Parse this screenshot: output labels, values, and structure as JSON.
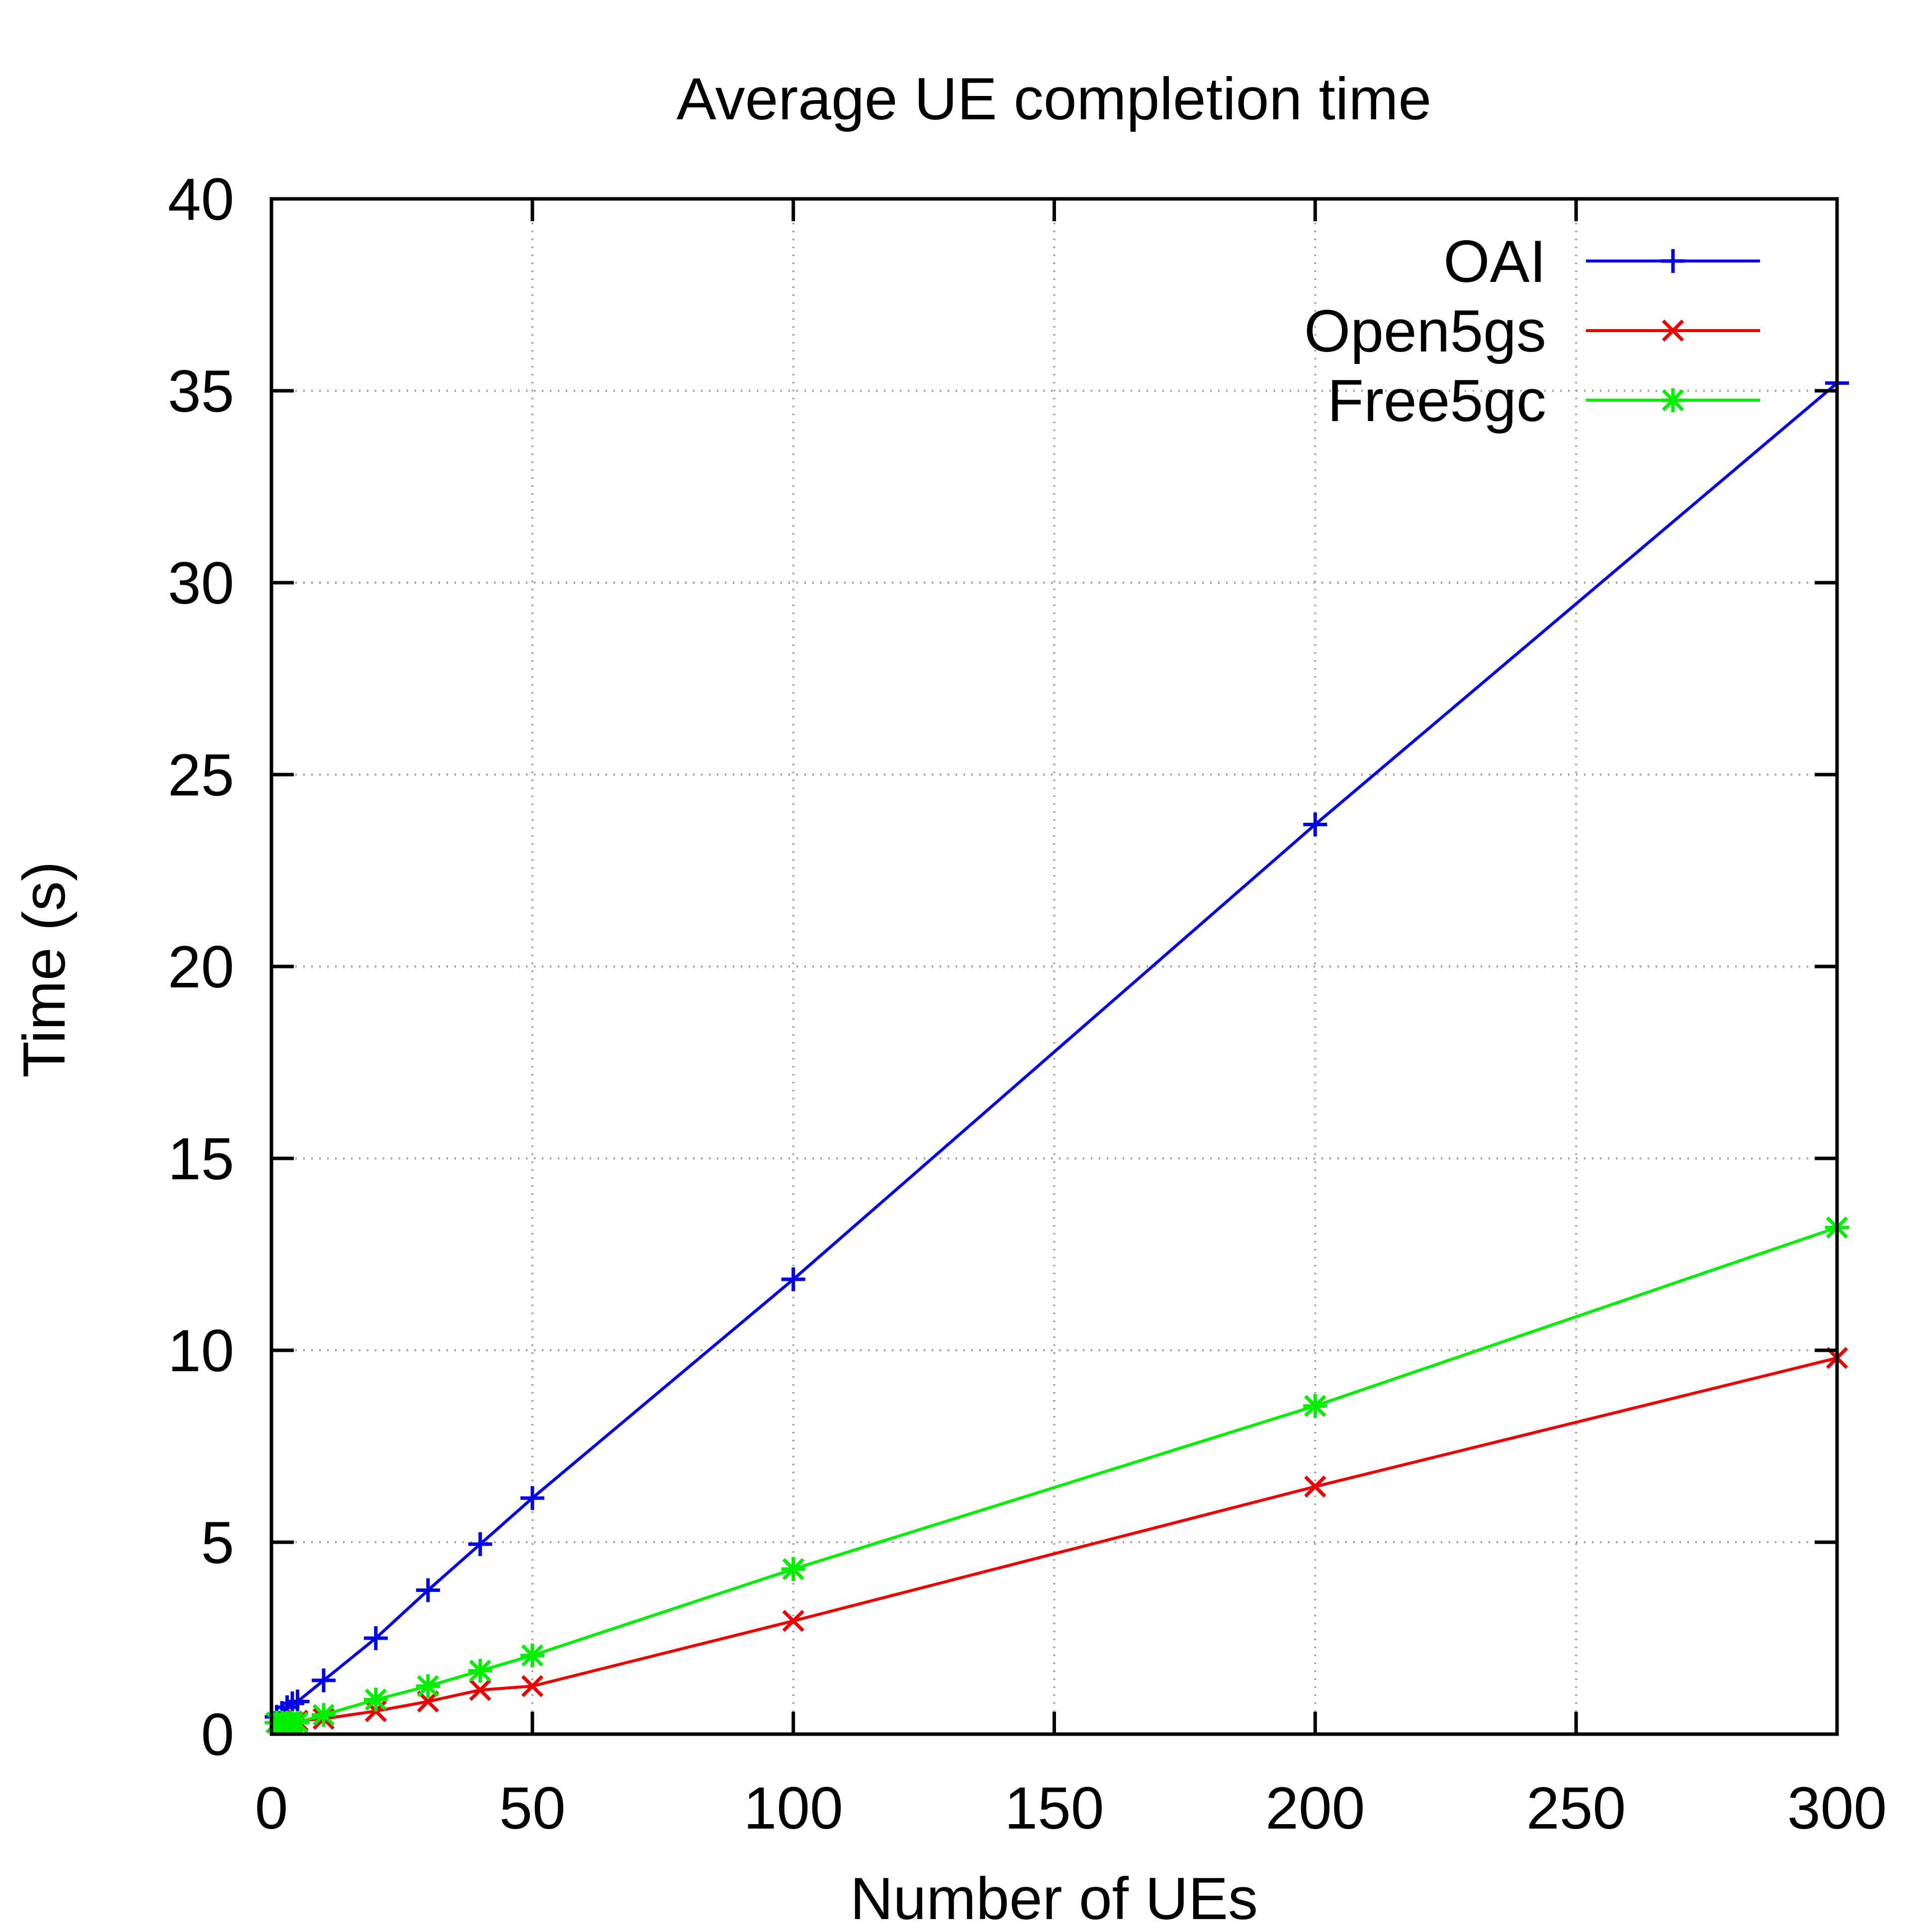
{
  "chart_data": {
    "type": "line",
    "title": "Average UE completion time",
    "xlabel": "Number of UEs",
    "ylabel": "Time (s)",
    "xlim": [
      0,
      300
    ],
    "ylim": [
      0,
      40
    ],
    "xticks": [
      0,
      50,
      100,
      150,
      200,
      250,
      300
    ],
    "yticks": [
      0,
      5,
      10,
      15,
      20,
      25,
      30,
      35,
      40
    ],
    "grid": true,
    "legend_position": "top-right",
    "series": [
      {
        "name": "OAI",
        "color": "#0000ee",
        "marker": "plus",
        "x": [
          1,
          2,
          3,
          4,
          5,
          10,
          20,
          30,
          40,
          50,
          100,
          200,
          300
        ],
        "y": [
          0.45,
          0.55,
          0.7,
          0.8,
          0.85,
          1.4,
          2.5,
          3.75,
          4.95,
          6.15,
          11.85,
          23.7,
          35.2
        ]
      },
      {
        "name": "Open5gs",
        "color": "#ee0000",
        "marker": "x",
        "x": [
          1,
          2,
          3,
          4,
          5,
          10,
          20,
          30,
          40,
          50,
          100,
          200,
          300
        ],
        "y": [
          0.3,
          0.3,
          0.3,
          0.32,
          0.35,
          0.4,
          0.6,
          0.85,
          1.15,
          1.25,
          2.95,
          6.45,
          9.8
        ]
      },
      {
        "name": "Free5gc",
        "color": "#00ee00",
        "marker": "star",
        "x": [
          1,
          2,
          3,
          4,
          5,
          10,
          20,
          30,
          40,
          50,
          100,
          200,
          300
        ],
        "y": [
          0.3,
          0.3,
          0.3,
          0.3,
          0.3,
          0.5,
          0.9,
          1.25,
          1.65,
          2.05,
          4.3,
          8.55,
          13.2
        ]
      }
    ]
  }
}
